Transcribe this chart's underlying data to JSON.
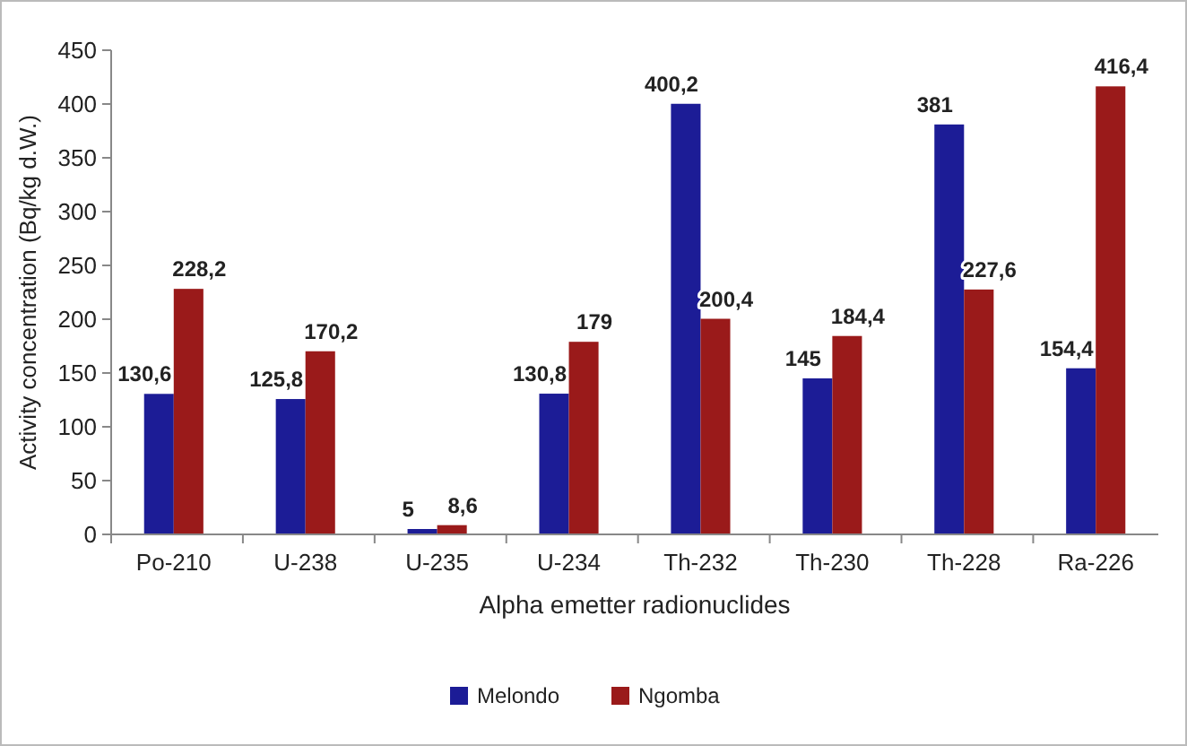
{
  "chart_data": {
    "type": "bar",
    "xlabel": "Alpha emetter  radionuclides",
    "ylabel": "Activity concentration  (Bq/kg d.W.)",
    "categories": [
      "Po-210",
      "U-238",
      "U-235",
      "U-234",
      "Th-232",
      "Th-230",
      "Th-228",
      "Ra-226"
    ],
    "series": [
      {
        "name": "Melondo",
        "color": "#1c1c96",
        "values": [
          130.6,
          125.8,
          5,
          130.8,
          400.2,
          145,
          381,
          154.4
        ],
        "value_labels": [
          "130,6",
          "125,8",
          "5",
          "130,8",
          "400,2",
          "145",
          "381",
          "154,4"
        ]
      },
      {
        "name": "Ngomba",
        "color": "#9a1a1a",
        "values": [
          228.2,
          170.2,
          8.6,
          179,
          200.4,
          184.4,
          227.6,
          416.4
        ],
        "value_labels": [
          "228,2",
          "170,2",
          "8,6",
          "179",
          "200,4",
          "184,4",
          "227,6",
          "416,4"
        ]
      }
    ],
    "ylim": [
      0,
      450
    ],
    "yticks": [
      0,
      50,
      100,
      150,
      200,
      250,
      300,
      350,
      400,
      450
    ],
    "grid": false,
    "legend": "bottom"
  }
}
